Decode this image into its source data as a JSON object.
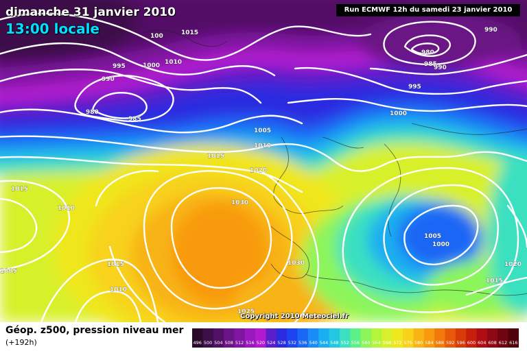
{
  "header": {
    "date": "dimanche 31 janvier 2010",
    "time": "13:00 locale",
    "run": "Run ECMWF 12h du samedi 23 janvier 2010"
  },
  "copyright": "Copyright 2010 Meteociel.fr",
  "footer": {
    "title": "Géop. z500, pression niveau mer",
    "subtitle": "(+192h)"
  },
  "legend": {
    "levels": [
      "496",
      "500",
      "504",
      "508",
      "512",
      "516",
      "520",
      "524",
      "528",
      "532",
      "536",
      "540",
      "544",
      "548",
      "552",
      "556",
      "560",
      "564",
      "568",
      "572",
      "576",
      "580",
      "584",
      "588",
      "592",
      "596",
      "600",
      "604",
      "608",
      "612",
      "616"
    ],
    "colors": [
      "#2a0a2a",
      "#3d0f4a",
      "#520f66",
      "#6a1585",
      "#7f16a2",
      "#9a18be",
      "#b21ad0",
      "#5a1fc8",
      "#2a2ae0",
      "#1e44f0",
      "#1a66f5",
      "#1a8cf5",
      "#1aaef0",
      "#22c8e0",
      "#3ae0c0",
      "#5ef088",
      "#8cf55a",
      "#b4f53c",
      "#d8f02c",
      "#f0e61e",
      "#f8d21a",
      "#f8b414",
      "#f89a10",
      "#f27a0c",
      "#e8580a",
      "#d83a08",
      "#c81e0c",
      "#b00c14",
      "#900814",
      "#700410",
      "#50020c"
    ],
    "label_color": "#ffffff"
  },
  "isobar_labels": [
    {
      "text": "1015",
      "id": "isobar-label-1015-a"
    },
    {
      "text": "100",
      "id": "isobar-label-100"
    },
    {
      "text": "995",
      "id": "isobar-label-995-a"
    },
    {
      "text": "1000",
      "id": "isobar-label-1000-a"
    },
    {
      "text": "1010",
      "id": "isobar-label-1010-a"
    },
    {
      "text": "990",
      "id": "isobar-label-990-a"
    },
    {
      "text": "980",
      "id": "isobar-label-980-a"
    },
    {
      "text": "985",
      "id": "isobar-label-985-a"
    },
    {
      "text": "990",
      "id": "isobar-label-990-b"
    },
    {
      "text": "980",
      "id": "isobar-label-980-b"
    },
    {
      "text": "985",
      "id": "isobar-label-985-b"
    },
    {
      "text": "990",
      "id": "isobar-label-990-c"
    },
    {
      "text": "995",
      "id": "isobar-label-995-b"
    },
    {
      "text": "1000",
      "id": "isobar-label-1000-b"
    },
    {
      "text": "1005",
      "id": "isobar-label-1005-a"
    },
    {
      "text": "1010",
      "id": "isobar-label-1010-b"
    },
    {
      "text": "1015",
      "id": "isobar-label-1015-b"
    },
    {
      "text": "1020",
      "id": "isobar-label-1020"
    },
    {
      "text": "1015",
      "id": "isobar-label-1015-c"
    },
    {
      "text": "1010",
      "id": "isobar-label-1010-c"
    },
    {
      "text": "1030",
      "id": "isobar-label-1030-a"
    },
    {
      "text": "1030",
      "id": "isobar-label-1030-b"
    },
    {
      "text": "1005",
      "id": "isobar-label-1005-b"
    },
    {
      "text": "1000",
      "id": "isobar-label-1000-c"
    },
    {
      "text": "1020",
      "id": "isobar-label-1020-b"
    },
    {
      "text": "1015",
      "id": "isobar-label-1015-d"
    },
    {
      "text": "1005",
      "id": "isobar-label-1005-c"
    },
    {
      "text": "1015",
      "id": "isobar-label-1015-e"
    },
    {
      "text": "1010",
      "id": "isobar-label-1010-d"
    },
    {
      "text": "1025",
      "id": "isobar-label-1025"
    }
  ]
}
